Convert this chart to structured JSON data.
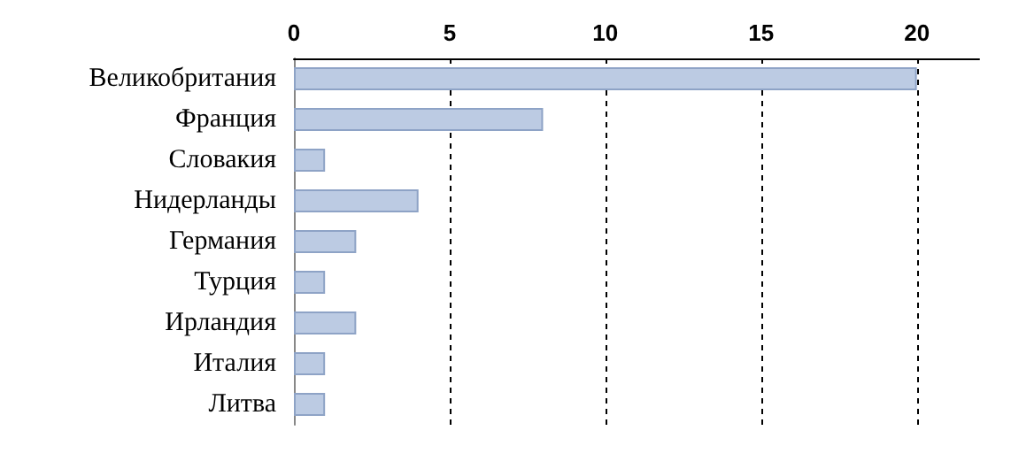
{
  "chart_data": {
    "type": "bar",
    "orientation": "horizontal",
    "categories": [
      "Великобритания",
      "Франция",
      "Словакия",
      "Нидерланды",
      "Германия",
      "Турция",
      "Ирландия",
      "Италия",
      "Литва"
    ],
    "values": [
      20,
      8,
      1,
      4,
      2,
      1,
      2,
      1,
      1
    ],
    "color": "#bccbe3",
    "xlim": [
      0,
      22
    ],
    "xticks": [
      0,
      5,
      10,
      15,
      20
    ],
    "grid": "x"
  }
}
